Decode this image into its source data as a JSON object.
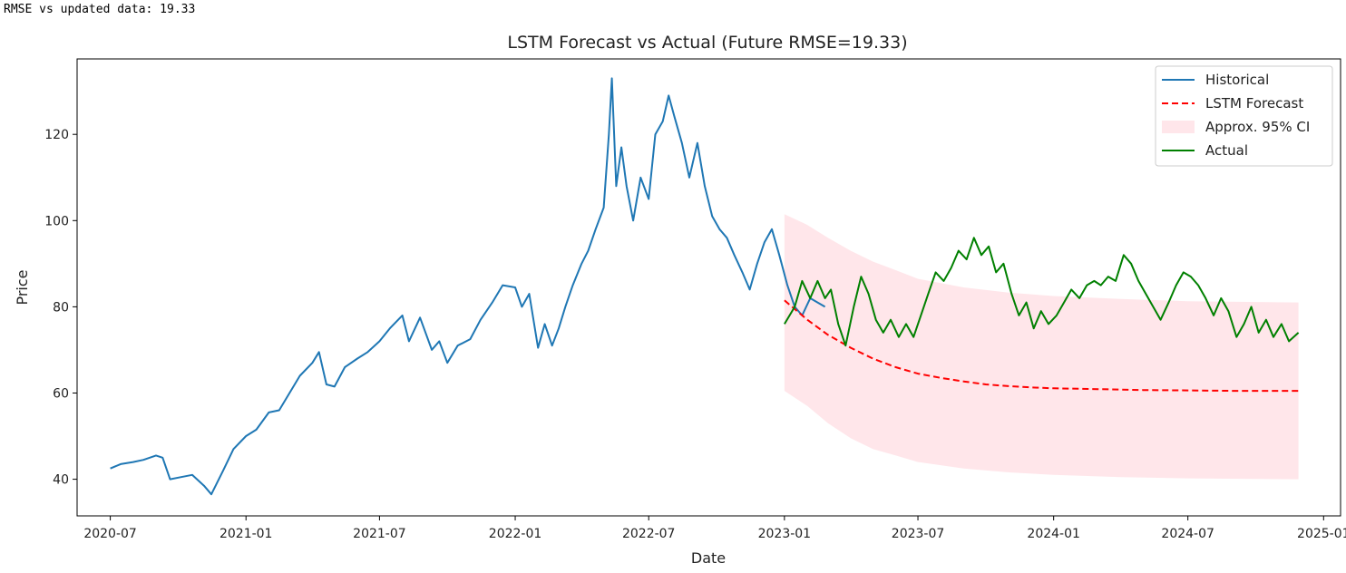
{
  "console": {
    "output": "RMSE vs updated data: 19.33"
  },
  "chart_data": {
    "type": "line",
    "title": "LSTM Forecast vs Actual (Future RMSE=19.33)",
    "xlabel": "Date",
    "ylabel": "Price",
    "x_range": [
      "2020-05-17",
      "2025-01-24"
    ],
    "ylim": [
      31.5,
      137.5
    ],
    "x_ticks": [
      "2020-07",
      "2021-01",
      "2021-07",
      "2022-01",
      "2022-07",
      "2023-01",
      "2023-07",
      "2024-01",
      "2024-07",
      "2025-01"
    ],
    "y_ticks": [
      40,
      60,
      80,
      100,
      120
    ],
    "grid": false,
    "legend_position": "top-right",
    "series": [
      {
        "name": "Historical",
        "style": "solid",
        "color": "#1f77b4",
        "points": [
          [
            "2020-07-01",
            42.5
          ],
          [
            "2020-07-15",
            43.5
          ],
          [
            "2020-08-01",
            44.0
          ],
          [
            "2020-08-15",
            44.5
          ],
          [
            "2020-09-01",
            45.5
          ],
          [
            "2020-09-10",
            45.0
          ],
          [
            "2020-09-20",
            40.0
          ],
          [
            "2020-10-05",
            40.5
          ],
          [
            "2020-10-20",
            41.0
          ],
          [
            "2020-11-05",
            38.5
          ],
          [
            "2020-11-15",
            36.5
          ],
          [
            "2020-12-01",
            42.0
          ],
          [
            "2020-12-15",
            47.0
          ],
          [
            "2021-01-01",
            50.0
          ],
          [
            "2021-01-15",
            51.5
          ],
          [
            "2021-02-01",
            55.5
          ],
          [
            "2021-02-15",
            56.0
          ],
          [
            "2021-03-01",
            60.0
          ],
          [
            "2021-03-15",
            64.0
          ],
          [
            "2021-04-01",
            67.0
          ],
          [
            "2021-04-10",
            69.5
          ],
          [
            "2021-04-20",
            62.0
          ],
          [
            "2021-05-01",
            61.5
          ],
          [
            "2021-05-15",
            66.0
          ],
          [
            "2021-06-01",
            68.0
          ],
          [
            "2021-06-15",
            69.5
          ],
          [
            "2021-07-01",
            72.0
          ],
          [
            "2021-07-15",
            75.0
          ],
          [
            "2021-08-01",
            78.0
          ],
          [
            "2021-08-10",
            72.0
          ],
          [
            "2021-08-25",
            77.5
          ],
          [
            "2021-09-10",
            70.0
          ],
          [
            "2021-09-20",
            72.0
          ],
          [
            "2021-10-01",
            67.0
          ],
          [
            "2021-10-15",
            71.0
          ],
          [
            "2021-11-01",
            72.5
          ],
          [
            "2021-11-15",
            77.0
          ],
          [
            "2021-12-01",
            81.0
          ],
          [
            "2021-12-15",
            85.0
          ],
          [
            "2022-01-01",
            84.5
          ],
          [
            "2022-01-10",
            80.0
          ],
          [
            "2022-01-20",
            83.0
          ],
          [
            "2022-02-01",
            70.5
          ],
          [
            "2022-02-10",
            76.0
          ],
          [
            "2022-02-20",
            71.0
          ],
          [
            "2022-03-01",
            75.0
          ],
          [
            "2022-03-10",
            80.0
          ],
          [
            "2022-03-20",
            85.0
          ],
          [
            "2022-04-01",
            90.0
          ],
          [
            "2022-04-10",
            93.0
          ],
          [
            "2022-04-20",
            98.0
          ],
          [
            "2022-05-01",
            103.0
          ],
          [
            "2022-05-08",
            120.0
          ],
          [
            "2022-05-12",
            133.0
          ],
          [
            "2022-05-18",
            108.0
          ],
          [
            "2022-05-25",
            117.0
          ],
          [
            "2022-06-01",
            108.0
          ],
          [
            "2022-06-10",
            100.0
          ],
          [
            "2022-06-20",
            110.0
          ],
          [
            "2022-07-01",
            105.0
          ],
          [
            "2022-07-10",
            120.0
          ],
          [
            "2022-07-20",
            123.0
          ],
          [
            "2022-07-28",
            129.0
          ],
          [
            "2022-08-05",
            124.0
          ],
          [
            "2022-08-15",
            118.0
          ],
          [
            "2022-08-25",
            110.0
          ],
          [
            "2022-09-05",
            118.0
          ],
          [
            "2022-09-15",
            108.0
          ],
          [
            "2022-09-25",
            101.0
          ],
          [
            "2022-10-05",
            98.0
          ],
          [
            "2022-10-15",
            96.0
          ],
          [
            "2022-10-25",
            92.0
          ],
          [
            "2022-11-05",
            88.0
          ],
          [
            "2022-11-15",
            84.0
          ],
          [
            "2022-11-25",
            90.0
          ],
          [
            "2022-12-05",
            95.0
          ],
          [
            "2022-12-15",
            98.0
          ],
          [
            "2022-12-25",
            92.0
          ],
          [
            "2023-01-05",
            85.0
          ],
          [
            "2023-01-15",
            80.0
          ],
          [
            "2023-01-25",
            78.0
          ],
          [
            "2023-02-05",
            82.0
          ],
          [
            "2023-02-15",
            81.0
          ],
          [
            "2023-02-25",
            80.0
          ]
        ]
      },
      {
        "name": "LSTM Forecast",
        "style": "dashed",
        "color": "#ff0000",
        "points": [
          [
            "2023-01-01",
            81.5
          ],
          [
            "2023-02-01",
            77.0
          ],
          [
            "2023-03-01",
            73.5
          ],
          [
            "2023-04-01",
            70.5
          ],
          [
            "2023-05-01",
            68.0
          ],
          [
            "2023-06-01",
            66.0
          ],
          [
            "2023-07-01",
            64.5
          ],
          [
            "2023-08-01",
            63.5
          ],
          [
            "2023-09-01",
            62.7
          ],
          [
            "2023-10-01",
            62.0
          ],
          [
            "2023-11-01",
            61.6
          ],
          [
            "2023-12-01",
            61.3
          ],
          [
            "2024-01-01",
            61.1
          ],
          [
            "2024-03-01",
            60.9
          ],
          [
            "2024-05-01",
            60.7
          ],
          [
            "2024-07-01",
            60.6
          ],
          [
            "2024-09-01",
            60.5
          ],
          [
            "2024-11-28",
            60.5
          ]
        ]
      },
      {
        "name": "Actual",
        "style": "solid",
        "color": "#008000",
        "points": [
          [
            "2023-01-01",
            76.0
          ],
          [
            "2023-01-15",
            80.0
          ],
          [
            "2023-01-25",
            86.0
          ],
          [
            "2023-02-05",
            82.0
          ],
          [
            "2023-02-15",
            86.0
          ],
          [
            "2023-02-25",
            82.0
          ],
          [
            "2023-03-05",
            84.0
          ],
          [
            "2023-03-15",
            76.0
          ],
          [
            "2023-03-25",
            71.0
          ],
          [
            "2023-04-05",
            80.0
          ],
          [
            "2023-04-15",
            87.0
          ],
          [
            "2023-04-25",
            83.0
          ],
          [
            "2023-05-05",
            77.0
          ],
          [
            "2023-05-15",
            74.0
          ],
          [
            "2023-05-25",
            77.0
          ],
          [
            "2023-06-05",
            73.0
          ],
          [
            "2023-06-15",
            76.0
          ],
          [
            "2023-06-25",
            73.0
          ],
          [
            "2023-07-05",
            78.0
          ],
          [
            "2023-07-15",
            83.0
          ],
          [
            "2023-07-25",
            88.0
          ],
          [
            "2023-08-05",
            86.0
          ],
          [
            "2023-08-15",
            89.0
          ],
          [
            "2023-08-25",
            93.0
          ],
          [
            "2023-09-05",
            91.0
          ],
          [
            "2023-09-15",
            96.0
          ],
          [
            "2023-09-25",
            92.0
          ],
          [
            "2023-10-05",
            94.0
          ],
          [
            "2023-10-15",
            88.0
          ],
          [
            "2023-10-25",
            90.0
          ],
          [
            "2023-11-05",
            83.0
          ],
          [
            "2023-11-15",
            78.0
          ],
          [
            "2023-11-25",
            81.0
          ],
          [
            "2023-12-05",
            75.0
          ],
          [
            "2023-12-15",
            79.0
          ],
          [
            "2023-12-25",
            76.0
          ],
          [
            "2024-01-05",
            78.0
          ],
          [
            "2024-01-15",
            81.0
          ],
          [
            "2024-01-25",
            84.0
          ],
          [
            "2024-02-05",
            82.0
          ],
          [
            "2024-02-15",
            85.0
          ],
          [
            "2024-02-25",
            86.0
          ],
          [
            "2024-03-05",
            85.0
          ],
          [
            "2024-03-15",
            87.0
          ],
          [
            "2024-03-25",
            86.0
          ],
          [
            "2024-04-05",
            92.0
          ],
          [
            "2024-04-15",
            90.0
          ],
          [
            "2024-04-25",
            86.0
          ],
          [
            "2024-05-05",
            83.0
          ],
          [
            "2024-05-15",
            80.0
          ],
          [
            "2024-05-25",
            77.0
          ],
          [
            "2024-06-05",
            81.0
          ],
          [
            "2024-06-15",
            85.0
          ],
          [
            "2024-06-25",
            88.0
          ],
          [
            "2024-07-05",
            87.0
          ],
          [
            "2024-07-15",
            85.0
          ],
          [
            "2024-07-25",
            82.0
          ],
          [
            "2024-08-05",
            78.0
          ],
          [
            "2024-08-15",
            82.0
          ],
          [
            "2024-08-25",
            79.0
          ],
          [
            "2024-09-05",
            73.0
          ],
          [
            "2024-09-15",
            76.0
          ],
          [
            "2024-09-25",
            80.0
          ],
          [
            "2024-10-05",
            74.0
          ],
          [
            "2024-10-15",
            77.0
          ],
          [
            "2024-10-25",
            73.0
          ],
          [
            "2024-11-05",
            76.0
          ],
          [
            "2024-11-15",
            72.0
          ],
          [
            "2024-11-28",
            74.0
          ]
        ]
      }
    ],
    "confidence_band": {
      "name": "Approx. 95% CI",
      "color": "#ffc0cb",
      "opacity": 0.4,
      "upper": [
        [
          "2023-01-01",
          101.5
        ],
        [
          "2023-02-01",
          99.0
        ],
        [
          "2023-03-01",
          96.0
        ],
        [
          "2023-04-01",
          93.0
        ],
        [
          "2023-05-01",
          90.5
        ],
        [
          "2023-06-01",
          88.5
        ],
        [
          "2023-07-01",
          86.5
        ],
        [
          "2023-09-01",
          84.5
        ],
        [
          "2023-11-01",
          83.3
        ],
        [
          "2024-01-01",
          82.5
        ],
        [
          "2024-04-01",
          81.8
        ],
        [
          "2024-07-01",
          81.3
        ],
        [
          "2024-11-28",
          81.0
        ]
      ],
      "lower": [
        [
          "2023-01-01",
          60.5
        ],
        [
          "2023-02-01",
          57.0
        ],
        [
          "2023-03-01",
          53.0
        ],
        [
          "2023-04-01",
          49.5
        ],
        [
          "2023-05-01",
          47.0
        ],
        [
          "2023-06-01",
          45.5
        ],
        [
          "2023-07-01",
          44.0
        ],
        [
          "2023-09-01",
          42.5
        ],
        [
          "2023-11-01",
          41.6
        ],
        [
          "2024-01-01",
          41.0
        ],
        [
          "2024-04-01",
          40.5
        ],
        [
          "2024-07-01",
          40.2
        ],
        [
          "2024-11-28",
          40.0
        ]
      ]
    }
  }
}
